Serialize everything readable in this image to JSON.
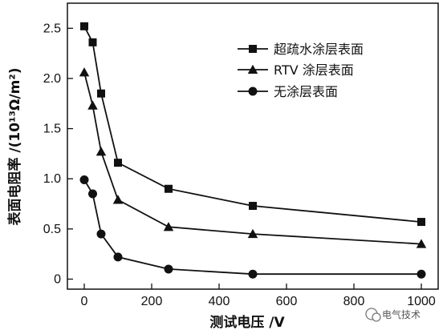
{
  "chart_data": {
    "type": "line",
    "xlabel": "测试电压 /V",
    "ylabel": "表面电阻率 /(10¹³Ω/m²)",
    "xlim": [
      -50,
      1050
    ],
    "ylim": [
      -0.1,
      2.75
    ],
    "xticks": [
      0,
      200,
      400,
      600,
      800,
      1000
    ],
    "yticks": [
      0,
      0.5,
      1.0,
      1.5,
      2.0,
      2.5
    ],
    "ytick_labels": [
      "0",
      "0.5",
      "1.0",
      "1.5",
      "2.0",
      "2.5"
    ],
    "legend_position": "top-right",
    "series": [
      {
        "name": "超疏水涂层表面",
        "marker": "square",
        "x": [
          0,
          25,
          50,
          100,
          250,
          500,
          1000
        ],
        "y": [
          2.52,
          2.36,
          1.85,
          1.16,
          0.9,
          0.73,
          0.57
        ]
      },
      {
        "name": "RTV 涂层表面",
        "marker": "triangle",
        "x": [
          0,
          25,
          50,
          100,
          250,
          500,
          1000
        ],
        "y": [
          2.06,
          1.73,
          1.27,
          0.79,
          0.52,
          0.45,
          0.35
        ]
      },
      {
        "name": "无涂层表面",
        "marker": "circle",
        "x": [
          0,
          25,
          50,
          100,
          250,
          500,
          1000
        ],
        "y": [
          0.99,
          0.85,
          0.45,
          0.22,
          0.1,
          0.05,
          0.05
        ]
      }
    ]
  },
  "watermark": {
    "text": "电气技术",
    "icon": "wechat-icon"
  }
}
